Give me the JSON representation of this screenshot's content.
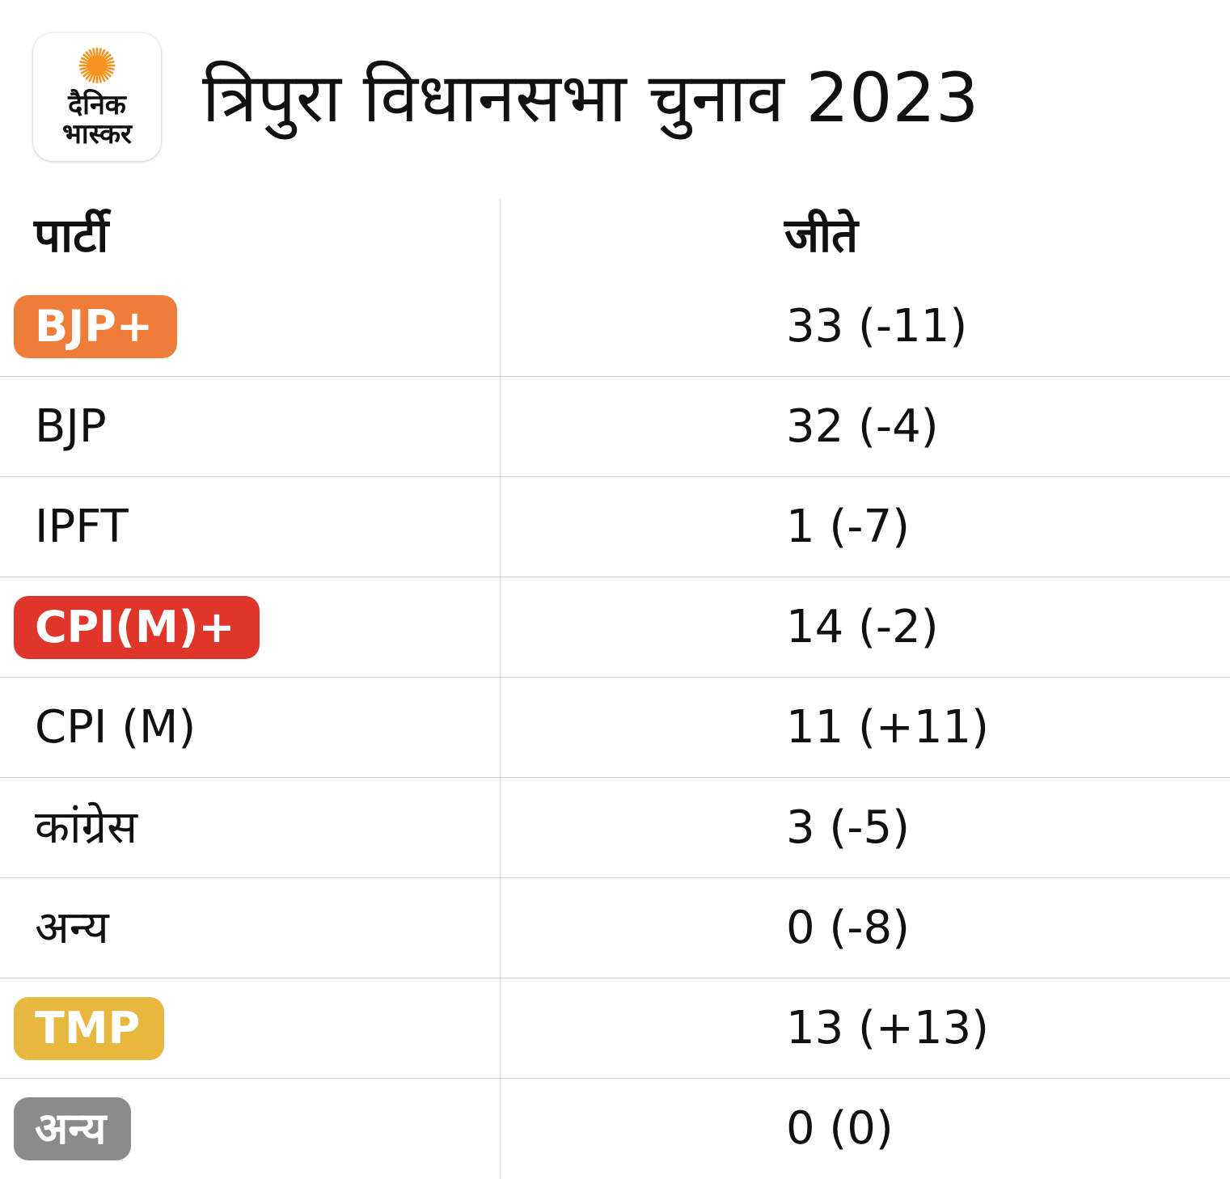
{
  "header": {
    "title": "त्रिपुरा विधानसभा चुनाव 2023",
    "logo": {
      "line1": "दैनिक",
      "line2": "भास्कर",
      "sun_color": "#f7931e"
    }
  },
  "chart_data": {
    "type": "table",
    "title": "त्रिपुरा विधानसभा चुनाव 2023",
    "columns": [
      "पार्टी",
      "जीते"
    ],
    "rows": [
      {
        "party": "BJP+",
        "won": "33 (-11)",
        "seats": 33,
        "change": -11,
        "group": true,
        "color": "#f07c3a"
      },
      {
        "party": "BJP",
        "won": "32 (-4)",
        "seats": 32,
        "change": -4,
        "group": false
      },
      {
        "party": "IPFT",
        "won": "1 (-7)",
        "seats": 1,
        "change": -7,
        "group": false
      },
      {
        "party": "CPI(M)+",
        "won": "14 (-2)",
        "seats": 14,
        "change": -2,
        "group": true,
        "color": "#e0352b"
      },
      {
        "party": "CPI (M)",
        "won": "11 (+11)",
        "seats": 11,
        "change": 11,
        "group": false
      },
      {
        "party": "कांग्रेस",
        "won": "3 (-5)",
        "seats": 3,
        "change": -5,
        "group": false
      },
      {
        "party": "अन्य",
        "won": "0 (-8)",
        "seats": 0,
        "change": -8,
        "group": false
      },
      {
        "party": "TMP",
        "won": "13 (+13)",
        "seats": 13,
        "change": 13,
        "group": true,
        "color": "#e8b83e"
      },
      {
        "party": "अन्य",
        "won": "0 (0)",
        "seats": 0,
        "change": 0,
        "group": true,
        "color": "#8b8b8b"
      }
    ]
  }
}
